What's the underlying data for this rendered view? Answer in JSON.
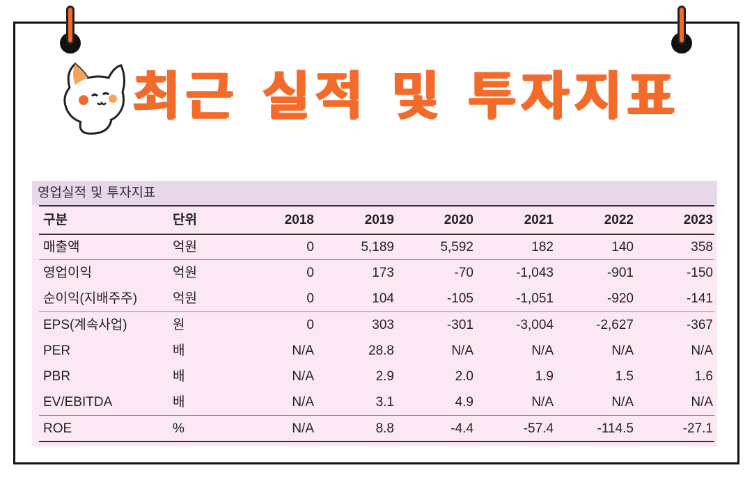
{
  "headline": "최근 실적 및 투자지표",
  "table": {
    "caption": "영업실적 및 투자지표",
    "header": {
      "label": "구분",
      "unit": "단위",
      "years": [
        "2018",
        "2019",
        "2020",
        "2021",
        "2022",
        "2023"
      ]
    },
    "rows": [
      {
        "label": "매출액",
        "unit": "억원",
        "values": [
          "0",
          "5,189",
          "5,592",
          "182",
          "140",
          "358"
        ]
      },
      {
        "label": "영업이익",
        "unit": "억원",
        "values": [
          "0",
          "173",
          "-70",
          "-1,043",
          "-901",
          "-150"
        ]
      },
      {
        "label": "순이익(지배주주)",
        "unit": "억원",
        "values": [
          "0",
          "104",
          "-105",
          "-1,051",
          "-920",
          "-141"
        ]
      },
      {
        "label": "EPS(계속사업)",
        "unit": "원",
        "values": [
          "0",
          "303",
          "-301",
          "-3,004",
          "-2,627",
          "-367"
        ]
      },
      {
        "label": "PER",
        "unit": "배",
        "values": [
          "N/A",
          "28.8",
          "N/A",
          "N/A",
          "N/A",
          "N/A"
        ]
      },
      {
        "label": "PBR",
        "unit": "배",
        "values": [
          "N/A",
          "2.9",
          "2.0",
          "1.9",
          "1.5",
          "1.6"
        ]
      },
      {
        "label": "EV/EBITDA",
        "unit": "배",
        "values": [
          "N/A",
          "3.1",
          "4.9",
          "N/A",
          "N/A",
          "N/A"
        ]
      },
      {
        "label": "ROE",
        "unit": "%",
        "values": [
          "N/A",
          "8.8",
          "-4.4",
          "-57.4",
          "-114.5",
          "-27.1"
        ]
      }
    ]
  },
  "colors": {
    "accent": "#f26b2a",
    "table_bg": "#fce8f4",
    "caption_bg": "#e8d7e9",
    "border": "#111111"
  },
  "icons": {
    "mascot": "cat-mascot-icon",
    "pins": "binder-pin-icon"
  }
}
